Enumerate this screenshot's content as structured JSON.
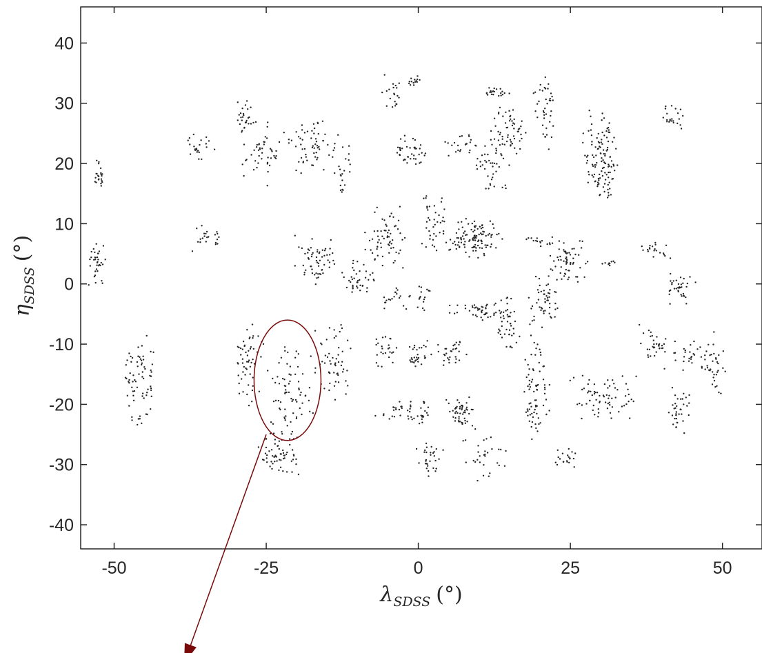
{
  "chart_data": {
    "type": "scatter",
    "title": "",
    "xlabel": {
      "symbol": "λ",
      "subscript": "SDSS",
      "unit": "(°)"
    },
    "ylabel": {
      "symbol": "η",
      "subscript": "SDSS",
      "unit": "(°)"
    },
    "xlim": [
      -55.5,
      56.5
    ],
    "ylim": [
      -44,
      46
    ],
    "xticks": [
      -50,
      -25,
      0,
      25,
      50
    ],
    "xtick_labels": [
      "-50",
      "-25",
      "0",
      "25",
      "50"
    ],
    "yticks": [
      40,
      30,
      20,
      10,
      0,
      -10,
      -20,
      -30,
      -40
    ],
    "ytick_labels": [
      "40",
      "30",
      "20",
      "10",
      "0",
      "-10",
      "-20",
      "-30",
      "-40"
    ],
    "grid": false,
    "legend": "none",
    "point_color": "#262626",
    "annotation_color": "#7a0a0a",
    "annotation": {
      "type": "ellipse-with-arrow",
      "ellipse_center": [
        -21.5,
        -16
      ],
      "ellipse_radius": [
        5.5,
        10
      ],
      "arrow_start": [
        -25,
        -25
      ],
      "arrow_end": [
        -38.5,
        -63
      ]
    },
    "clusters": [
      {
        "x": [
          -53.5,
          -51.5
        ],
        "y": [
          15,
          21
        ],
        "n": 22
      },
      {
        "x": [
          -54.5,
          -51
        ],
        "y": [
          -1,
          7
        ],
        "n": 35
      },
      {
        "x": [
          -48.5,
          -43
        ],
        "y": [
          -24,
          -8
        ],
        "n": 70
      },
      {
        "x": [
          -39,
          -33.5
        ],
        "y": [
          20,
          25
        ],
        "n": 22
      },
      {
        "x": [
          -38,
          -32
        ],
        "y": [
          5,
          10
        ],
        "n": 22
      },
      {
        "x": [
          -30,
          -27
        ],
        "y": [
          25,
          31
        ],
        "n": 25
      },
      {
        "x": [
          -29,
          -22
        ],
        "y": [
          16,
          28
        ],
        "n": 50
      },
      {
        "x": [
          -22,
          -13
        ],
        "y": [
          18,
          28
        ],
        "n": 60
      },
      {
        "x": [
          -14,
          -11
        ],
        "y": [
          15,
          24
        ],
        "n": 22
      },
      {
        "x": [
          -31,
          -25
        ],
        "y": [
          -20,
          -6
        ],
        "n": 55
      },
      {
        "x": [
          -25,
          -17
        ],
        "y": [
          -25,
          -10
        ],
        "n": 70
      },
      {
        "x": [
          -27,
          -19
        ],
        "y": [
          -32,
          -24
        ],
        "n": 65
      },
      {
        "x": [
          -17,
          -11
        ],
        "y": [
          -20,
          -6
        ],
        "n": 55
      },
      {
        "x": [
          -21,
          -13
        ],
        "y": [
          -1,
          8
        ],
        "n": 60
      },
      {
        "x": [
          -13,
          -7
        ],
        "y": [
          -3,
          4
        ],
        "n": 40
      },
      {
        "x": [
          -9,
          -2
        ],
        "y": [
          1,
          14
        ],
        "n": 65
      },
      {
        "x": [
          -7,
          -1
        ],
        "y": [
          -5,
          0
        ],
        "n": 20
      },
      {
        "x": [
          -6,
          -2
        ],
        "y": [
          29,
          35
        ],
        "n": 20
      },
      {
        "x": [
          -2,
          0.5
        ],
        "y": [
          32,
          35
        ],
        "n": 14
      },
      {
        "x": [
          -4,
          1.5
        ],
        "y": [
          19,
          25
        ],
        "n": 40
      },
      {
        "x": [
          0,
          5
        ],
        "y": [
          5,
          15
        ],
        "n": 40
      },
      {
        "x": [
          5,
          14
        ],
        "y": [
          4,
          11
        ],
        "n": 110
      },
      {
        "x": [
          4,
          10
        ],
        "y": [
          21,
          25
        ],
        "n": 22
      },
      {
        "x": [
          9,
          15
        ],
        "y": [
          15,
          25
        ],
        "n": 45
      },
      {
        "x": [
          10,
          15
        ],
        "y": [
          31,
          33
        ],
        "n": 22
      },
      {
        "x": [
          12,
          18
        ],
        "y": [
          21,
          31
        ],
        "n": 55
      },
      {
        "x": [
          19,
          23
        ],
        "y": [
          22,
          35
        ],
        "n": 40
      },
      {
        "x": [
          27,
          33
        ],
        "y": [
          13,
          29
        ],
        "n": 120
      },
      {
        "x": [
          40,
          44
        ],
        "y": [
          25,
          30
        ],
        "n": 22
      },
      {
        "x": [
          5,
          16
        ],
        "y": [
          -6,
          -3
        ],
        "n": 50
      },
      {
        "x": [
          13,
          17
        ],
        "y": [
          -12,
          -1
        ],
        "n": 40
      },
      {
        "x": [
          18,
          23
        ],
        "y": [
          -8,
          2
        ],
        "n": 50
      },
      {
        "x": [
          17,
          22
        ],
        "y": [
          6,
          8
        ],
        "n": 15
      },
      {
        "x": [
          21,
          28
        ],
        "y": [
          0,
          8
        ],
        "n": 60
      },
      {
        "x": [
          27,
          35
        ],
        "y": [
          3,
          4
        ],
        "n": 10
      },
      {
        "x": [
          35,
          42
        ],
        "y": [
          4,
          7
        ],
        "n": 20
      },
      {
        "x": [
          40,
          46
        ],
        "y": [
          -4,
          3
        ],
        "n": 35
      },
      {
        "x": [
          -1,
          2
        ],
        "y": [
          -5,
          1
        ],
        "n": 15
      },
      {
        "x": [
          -8,
          -3
        ],
        "y": [
          -14,
          -8
        ],
        "n": 25
      },
      {
        "x": [
          -2,
          3
        ],
        "y": [
          -14,
          -9
        ],
        "n": 30
      },
      {
        "x": [
          3,
          8
        ],
        "y": [
          -14,
          -9
        ],
        "n": 30
      },
      {
        "x": [
          17,
          22
        ],
        "y": [
          -27,
          -8
        ],
        "n": 75
      },
      {
        "x": [
          -7,
          1
        ],
        "y": [
          -23,
          -19
        ],
        "n": 30
      },
      {
        "x": [
          0,
          2
        ],
        "y": [
          -24,
          -19
        ],
        "n": 14
      },
      {
        "x": [
          4,
          10
        ],
        "y": [
          -25,
          -18
        ],
        "n": 50
      },
      {
        "x": [
          -1,
          4
        ],
        "y": [
          -32,
          -26
        ],
        "n": 30
      },
      {
        "x": [
          6,
          15
        ],
        "y": [
          -33,
          -25
        ],
        "n": 30
      },
      {
        "x": [
          22,
          26
        ],
        "y": [
          -31,
          -27
        ],
        "n": 20
      },
      {
        "x": [
          25,
          37
        ],
        "y": [
          -23,
          -15
        ],
        "n": 70
      },
      {
        "x": [
          36,
          41
        ],
        "y": [
          -14,
          -6
        ],
        "n": 30
      },
      {
        "x": [
          40,
          50
        ],
        "y": [
          -15,
          -8
        ],
        "n": 45
      },
      {
        "x": [
          47,
          51
        ],
        "y": [
          -19,
          -11
        ],
        "n": 20
      },
      {
        "x": [
          41,
          45
        ],
        "y": [
          -25,
          -16
        ],
        "n": 35
      }
    ]
  }
}
